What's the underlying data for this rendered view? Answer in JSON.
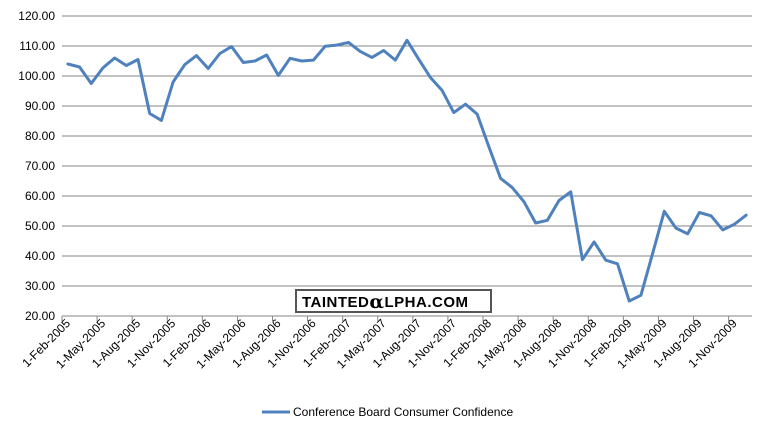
{
  "chart_data": {
    "type": "line",
    "ylim": [
      20,
      120
    ],
    "y_ticks": [
      "20.00",
      "30.00",
      "40.00",
      "50.00",
      "60.00",
      "70.00",
      "80.00",
      "90.00",
      "100.00",
      "110.00",
      "120.00"
    ],
    "x_tick_labels": [
      "1-Feb-2005",
      "1-May-2005",
      "1-Aug-2005",
      "1-Nov-2005",
      "1-Feb-2006",
      "1-May-2006",
      "1-Aug-2006",
      "1-Nov-2006",
      "1-Feb-2007",
      "1-May-2007",
      "1-Aug-2007",
      "1-Nov-2007",
      "1-Feb-2008",
      "1-May-2008",
      "1-Aug-2008",
      "1-Nov-2008",
      "1-Feb-2009",
      "1-May-2009",
      "1-Aug-2009",
      "1-Nov-2009"
    ],
    "grid": "horizontal",
    "legend_position": "bottom",
    "series": [
      {
        "name": "Conference Board Consumer Confidence",
        "color": "#4f81bd",
        "x_start": "Feb-2005",
        "values": [
          104.0,
          103.0,
          97.5,
          102.7,
          106.0,
          103.5,
          105.5,
          87.5,
          85.2,
          98.0,
          103.8,
          106.8,
          102.5,
          107.5,
          109.8,
          104.5,
          105.0,
          107.0,
          100.2,
          105.9,
          105.0,
          105.3,
          109.9,
          110.3,
          111.2,
          108.2,
          106.2,
          108.5,
          105.3,
          111.9,
          105.6,
          99.5,
          95.2,
          87.8,
          90.6,
          87.3,
          76.4,
          65.9,
          62.8,
          58.1,
          51.0,
          51.9,
          58.5,
          61.4,
          38.8,
          44.7,
          38.6,
          37.4,
          25.0,
          26.9,
          40.8,
          54.9,
          49.3,
          47.4,
          54.5,
          53.4,
          48.7,
          50.6,
          53.6
        ]
      }
    ]
  },
  "watermark": {
    "text_before": "TAINTED",
    "alpha_glyph": "α",
    "text_after": "LPHA.COM"
  },
  "legend": {
    "label": "Conference Board Consumer Confidence"
  }
}
